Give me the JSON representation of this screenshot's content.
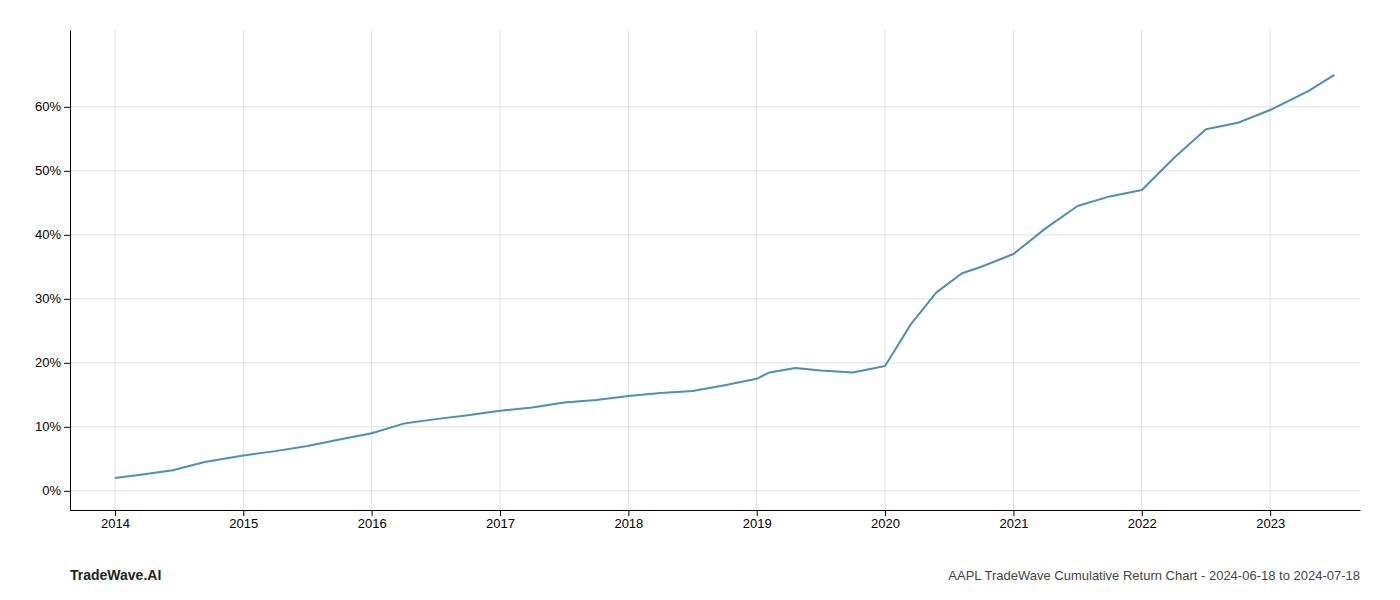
{
  "chart_data": {
    "type": "line",
    "title": "AAPL TradeWave Cumulative Return Chart - 2024-06-18 to 2024-07-18",
    "annotations": [
      "TradeWave.AI"
    ],
    "color": "#4a90b8",
    "x": [
      2014.0,
      2014.2,
      2014.45,
      2014.7,
      2015.0,
      2015.25,
      2015.5,
      2015.75,
      2016.0,
      2016.25,
      2016.5,
      2016.75,
      2017.0,
      2017.25,
      2017.5,
      2017.75,
      2018.0,
      2018.25,
      2018.5,
      2018.75,
      2019.0,
      2019.1,
      2019.3,
      2019.5,
      2019.75,
      2020.0,
      2020.2,
      2020.4,
      2020.6,
      2020.75,
      2021.0,
      2021.25,
      2021.5,
      2021.75,
      2022.0,
      2022.25,
      2022.5,
      2022.75,
      2023.0,
      2023.3,
      2023.5
    ],
    "values": [
      2.0,
      2.5,
      3.2,
      4.5,
      5.5,
      6.2,
      7.0,
      8.0,
      9.0,
      10.5,
      11.2,
      11.8,
      12.5,
      13.0,
      13.8,
      14.2,
      14.8,
      15.3,
      15.6,
      16.5,
      17.5,
      18.5,
      19.2,
      18.8,
      18.5,
      19.5,
      26.0,
      31.0,
      34.0,
      35.0,
      37.0,
      41.0,
      44.5,
      46.0,
      47.0,
      52.0,
      56.5,
      57.5,
      59.5,
      62.5,
      65.0
    ],
    "xlim": [
      2013.65,
      2023.7
    ],
    "ylim": [
      -3,
      72
    ],
    "xticks": [
      2014,
      2015,
      2016,
      2017,
      2018,
      2019,
      2020,
      2021,
      2022,
      2023
    ],
    "yticks": [
      {
        "value": 0,
        "label": "0%"
      },
      {
        "value": 10,
        "label": "10%"
      },
      {
        "value": 20,
        "label": "20%"
      },
      {
        "value": 30,
        "label": "30%"
      },
      {
        "value": 40,
        "label": "40%"
      },
      {
        "value": 50,
        "label": "50%"
      },
      {
        "value": 60,
        "label": "60%"
      }
    ],
    "grid": true
  }
}
